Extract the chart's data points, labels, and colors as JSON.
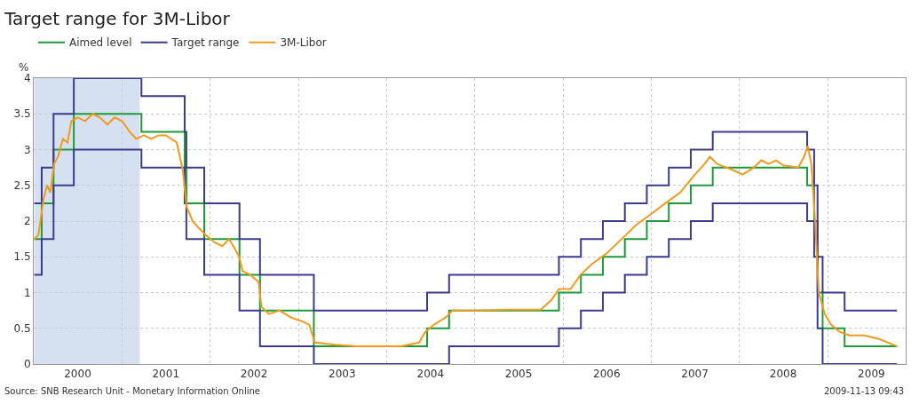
{
  "chart_data": {
    "type": "step",
    "title": "Target range for 3M-Libor",
    "ylabel": "%",
    "xlim": [
      "2000-01-01",
      "2009-11-20"
    ],
    "xticks": [
      {
        "value": "2000-07-01",
        "label": "2000"
      },
      {
        "value": "2001-07-01",
        "label": "2001"
      },
      {
        "value": "2002-07-01",
        "label": "2002"
      },
      {
        "value": "2003-07-01",
        "label": "2003"
      },
      {
        "value": "2004-07-01",
        "label": "2004"
      },
      {
        "value": "2005-07-01",
        "label": "2005"
      },
      {
        "value": "2006-07-01",
        "label": "2006"
      },
      {
        "value": "2007-07-01",
        "label": "2007"
      },
      {
        "value": "2008-07-01",
        "label": "2008"
      },
      {
        "value": "2009-07-01",
        "label": "2009"
      },
      {
        "value": "2001-01-01",
        "label": null
      },
      {
        "value": "2002-01-01",
        "label": null
      },
      {
        "value": "2003-01-01",
        "label": null
      },
      {
        "value": "2004-01-01",
        "label": null
      },
      {
        "value": "2005-01-01",
        "label": null
      },
      {
        "value": "2006-01-01",
        "label": null
      },
      {
        "value": "2007-01-01",
        "label": null
      },
      {
        "value": "2008-01-01",
        "label": null
      },
      {
        "value": "2009-01-01",
        "label": null
      }
    ],
    "ylim": [
      0,
      4
    ],
    "yticks": [
      0,
      0.5,
      1,
      1.5,
      2,
      2.5,
      3,
      3.5,
      4
    ],
    "grid": true,
    "legend": "top left",
    "line_style": "solid",
    "marker": "none",
    "bands": [
      {
        "axis": "x",
        "from": "2000-01-03",
        "to": "2001-03-15",
        "color": "#d5e0f0"
      }
    ],
    "annotations": [
      "Source: SNB Research Unit - Monetary Information Online",
      "2009-11-13 09:43"
    ],
    "series": [
      {
        "name": "Aimed level",
        "color": "#1f9a3a",
        "x": [
          "2000-01-03",
          "2000-02-03",
          "2000-03-23",
          "2000-06-15",
          "2001-03-22",
          "2001-09-17",
          "2001-09-24",
          "2001-12-07",
          "2002-05-02",
          "2002-07-26",
          "2003-03-06",
          "2004-06-17",
          "2004-09-16",
          "2005-12-15",
          "2006-03-16",
          "2006-06-15",
          "2006-09-14",
          "2006-12-14",
          "2007-03-15",
          "2007-06-14",
          "2007-09-13",
          "2008-10-08",
          "2008-11-06",
          "2008-11-20",
          "2008-12-11",
          "2009-03-12",
          "2009-10-15"
        ],
        "values": [
          1.75,
          2.25,
          3.0,
          3.5,
          3.25,
          2.75,
          2.25,
          1.75,
          1.25,
          0.75,
          0.25,
          0.5,
          0.75,
          1.0,
          1.25,
          1.5,
          1.75,
          2.0,
          2.25,
          2.5,
          2.75,
          2.5,
          2.0,
          1.0,
          0.5,
          0.25,
          0.25
        ]
      },
      {
        "name": "Target range",
        "color": "#3b3b8f",
        "x": [
          "2000-01-03",
          "2000-02-03",
          "2000-03-23",
          "2000-06-15",
          "2001-03-22",
          "2001-09-17",
          "2001-09-24",
          "2001-12-07",
          "2002-05-02",
          "2002-07-26",
          "2003-03-06",
          "2004-06-17",
          "2004-09-16",
          "2005-12-15",
          "2006-03-16",
          "2006-06-15",
          "2006-09-14",
          "2006-12-14",
          "2007-03-15",
          "2007-06-14",
          "2007-09-13",
          "2008-10-08",
          "2008-11-06",
          "2008-11-20",
          "2008-12-11",
          "2009-03-12",
          "2009-10-15"
        ],
        "values": [
          2.25,
          2.75,
          3.5,
          4.0,
          3.75,
          3.25,
          2.75,
          2.25,
          1.75,
          1.25,
          0.75,
          1.0,
          1.25,
          1.5,
          1.75,
          2.0,
          2.25,
          2.5,
          2.75,
          3.0,
          3.25,
          3.0,
          2.5,
          1.5,
          1.0,
          0.75,
          0.75
        ]
      },
      {
        "color": "#3b3b8f",
        "x": [
          "2000-01-03",
          "2000-02-03",
          "2000-03-23",
          "2000-06-15",
          "2001-03-22",
          "2001-09-17",
          "2001-09-24",
          "2001-12-07",
          "2002-05-02",
          "2002-07-26",
          "2003-03-06",
          "2004-06-17",
          "2004-09-16",
          "2005-12-15",
          "2006-03-16",
          "2006-06-15",
          "2006-09-14",
          "2006-12-14",
          "2007-03-15",
          "2007-06-14",
          "2007-09-13",
          "2008-10-08",
          "2008-11-06",
          "2008-11-20",
          "2008-12-11",
          "2009-03-12",
          "2009-10-15"
        ],
        "values": [
          1.25,
          1.75,
          2.5,
          3.0,
          2.75,
          2.25,
          1.75,
          1.25,
          0.75,
          0.25,
          0,
          0,
          0.25,
          0.5,
          0.75,
          1.0,
          1.25,
          1.5,
          1.75,
          2.0,
          2.25,
          2.0,
          1.5,
          0.5,
          0,
          0,
          0
        ]
      },
      {
        "name": "3M-Libor",
        "color": "#f39a1e",
        "type": "line",
        "x": [
          "2000-01-03",
          "2000-01-20",
          "2000-02-10",
          "2000-02-25",
          "2000-03-10",
          "2000-03-25",
          "2000-04-10",
          "2000-05-01",
          "2000-05-20",
          "2000-06-05",
          "2000-07-01",
          "2000-08-01",
          "2000-09-01",
          "2000-10-01",
          "2000-11-01",
          "2000-12-01",
          "2001-01-01",
          "2001-02-01",
          "2001-03-01",
          "2001-04-01",
          "2001-05-01",
          "2001-06-01",
          "2001-07-01",
          "2001-08-15",
          "2001-09-10",
          "2001-09-25",
          "2001-10-20",
          "2001-11-15",
          "2001-12-15",
          "2002-01-20",
          "2002-02-20",
          "2002-03-20",
          "2002-04-15",
          "2002-05-01",
          "2002-05-15",
          "2002-06-15",
          "2002-07-20",
          "2002-08-01",
          "2002-09-01",
          "2002-10-15",
          "2002-12-01",
          "2003-01-15",
          "2003-02-15",
          "2003-03-10",
          "2003-06-01",
          "2003-09-01",
          "2003-12-01",
          "2004-03-01",
          "2004-05-15",
          "2004-06-10",
          "2004-07-15",
          "2004-09-01",
          "2004-10-01",
          "2005-01-01",
          "2005-06-01",
          "2005-10-01",
          "2005-11-15",
          "2005-12-15",
          "2006-02-01",
          "2006-03-15",
          "2006-05-01",
          "2006-07-01",
          "2006-09-01",
          "2006-11-01",
          "2007-01-01",
          "2007-03-01",
          "2007-05-01",
          "2007-07-01",
          "2007-08-10",
          "2007-09-01",
          "2007-10-01",
          "2007-12-01",
          "2008-01-15",
          "2008-03-01",
          "2008-04-01",
          "2008-05-01",
          "2008-06-01",
          "2008-07-01",
          "2008-09-01",
          "2008-09-25",
          "2008-10-10",
          "2008-10-25",
          "2008-11-10",
          "2008-11-25",
          "2008-12-20",
          "2009-01-15",
          "2009-02-20",
          "2009-04-01",
          "2009-06-01",
          "2009-08-01",
          "2009-10-15"
        ],
        "values": [
          1.75,
          1.8,
          2.3,
          2.5,
          2.4,
          2.8,
          2.9,
          3.15,
          3.1,
          3.4,
          3.45,
          3.4,
          3.5,
          3.45,
          3.35,
          3.45,
          3.4,
          3.25,
          3.15,
          3.2,
          3.15,
          3.2,
          3.2,
          3.1,
          2.7,
          2.2,
          2.0,
          1.9,
          1.8,
          1.7,
          1.65,
          1.75,
          1.6,
          1.5,
          1.3,
          1.25,
          1.15,
          0.8,
          0.7,
          0.75,
          0.65,
          0.6,
          0.55,
          0.3,
          0.27,
          0.25,
          0.25,
          0.25,
          0.3,
          0.45,
          0.55,
          0.65,
          0.75,
          0.75,
          0.76,
          0.76,
          0.9,
          1.05,
          1.05,
          1.25,
          1.4,
          1.55,
          1.75,
          1.95,
          2.1,
          2.25,
          2.4,
          2.65,
          2.8,
          2.9,
          2.8,
          2.72,
          2.65,
          2.75,
          2.85,
          2.8,
          2.85,
          2.78,
          2.75,
          2.9,
          3.05,
          2.8,
          2.0,
          1.0,
          0.7,
          0.55,
          0.45,
          0.4,
          0.4,
          0.35,
          0.25
        ]
      }
    ]
  }
}
